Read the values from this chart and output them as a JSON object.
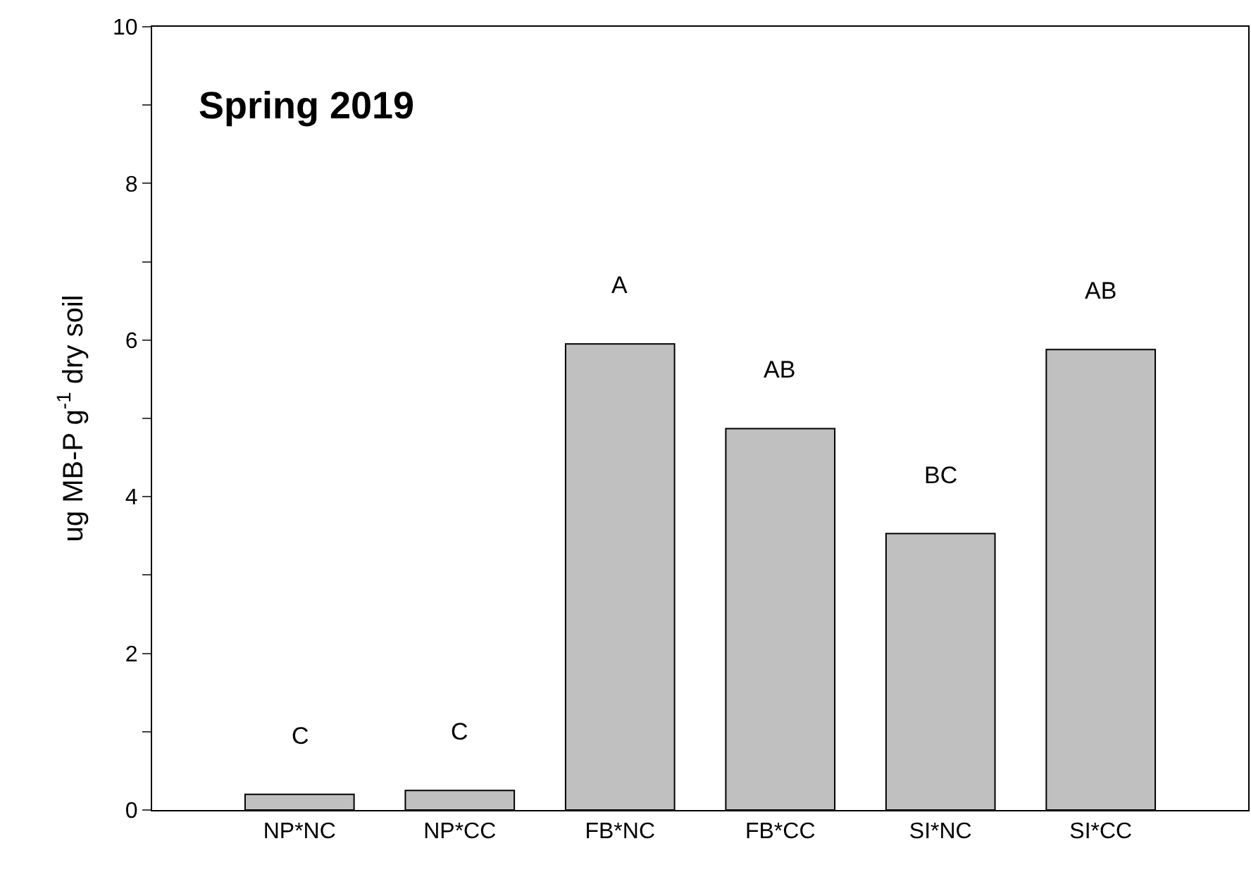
{
  "chart_data": {
    "type": "bar",
    "title": "Spring 2019",
    "ylabel": "ug MB-P g$^{-1}$ dry soil",
    "categories": [
      "NP*NC",
      "NP*CC",
      "FB*NC",
      "FB*CC",
      "SI*NC",
      "SI*CC"
    ],
    "values": [
      0.2,
      0.25,
      5.95,
      4.87,
      3.53,
      5.88
    ],
    "color": "#c0c0c0",
    "ylim": [
      0,
      10
    ],
    "yticks": [
      0,
      {
        "value": 1,
        "label": null
      },
      2,
      {
        "value": 3,
        "label": null
      },
      4,
      {
        "value": 5,
        "label": null
      },
      6,
      {
        "value": 7,
        "label": null
      },
      8,
      {
        "value": 9,
        "label": null
      },
      10
    ],
    "annotations": [
      "C",
      "C",
      "A",
      "AB",
      "BC",
      "AB"
    ]
  }
}
